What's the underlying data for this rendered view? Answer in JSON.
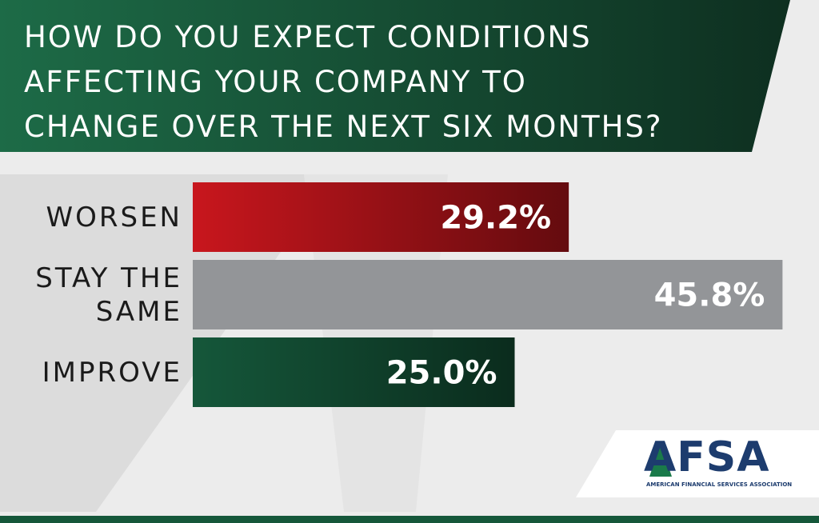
{
  "chart_data": {
    "type": "bar",
    "title": [
      "HOW DO YOU EXPECT CONDITIONS",
      "AFFECTING YOUR COMPANY TO",
      "CHANGE OVER THE NEXT SIX MONTHS?"
    ],
    "categories": [
      "WORSEN",
      "STAY THE SAME",
      "IMPROVE"
    ],
    "values": [
      29.2,
      45.8,
      25.0
    ],
    "value_labels": [
      "29.2%",
      "45.8%",
      "25.0%"
    ],
    "colors": [
      "#c8161d",
      "#939598",
      "#15573a"
    ],
    "logo": {
      "text": "AFSA",
      "subtitle": "AMERICAN FINANCIAL SERVICES ASSOCIATION"
    }
  }
}
